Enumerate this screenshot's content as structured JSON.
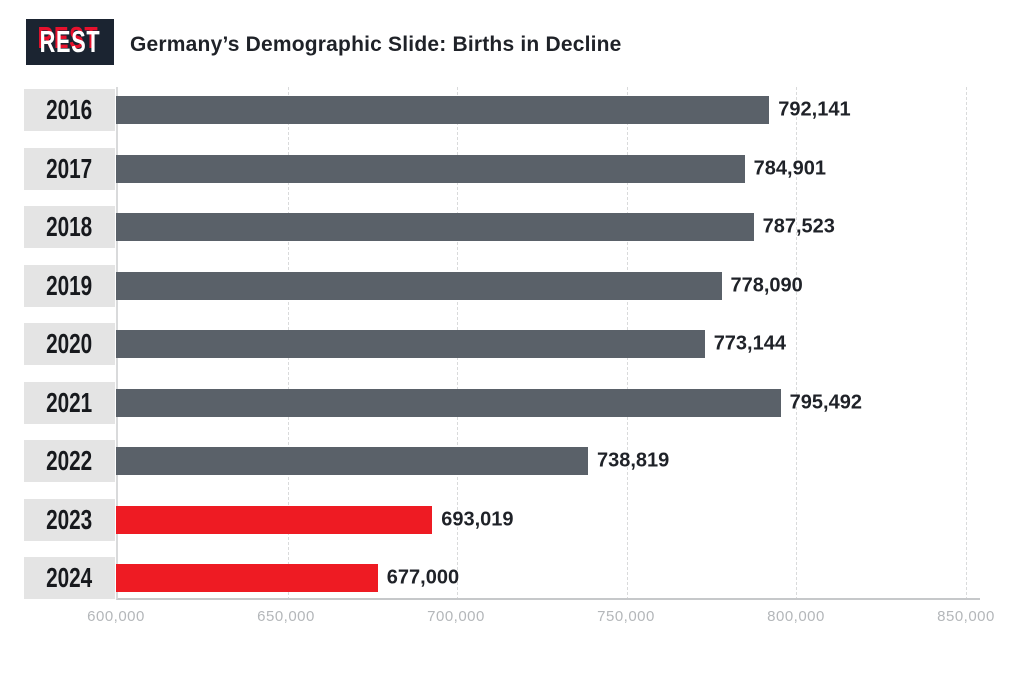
{
  "header": {
    "logo_text": "REST",
    "title": "Germany’s Demographic Slide: Births in Decline"
  },
  "chart_data": {
    "type": "bar",
    "orientation": "horizontal",
    "title": "Germany’s Demographic Slide: Births in Decline",
    "categories": [
      "2016",
      "2017",
      "2018",
      "2019",
      "2020",
      "2021",
      "2022",
      "2023",
      "2024"
    ],
    "values": [
      792141,
      784901,
      787523,
      778090,
      773144,
      795492,
      738819,
      693019,
      677000
    ],
    "value_labels": [
      "792,141",
      "784,901",
      "787,523",
      "778,090",
      "773,144",
      "795,492",
      "738,819",
      "693,019",
      "677,000"
    ],
    "highlight_categories": [
      "2023",
      "2024"
    ],
    "xlim": [
      600000,
      850000
    ],
    "x_ticks": [
      "600,000",
      "650,000",
      "700,000",
      "750,000",
      "800,000",
      "850,000"
    ],
    "xlabel": "",
    "ylabel": "",
    "legend": "none",
    "grid": "vertical-dotted",
    "colors": {
      "bar": "#5a6169",
      "highlight": "#ee1b23",
      "year_box_bg": "#e4e4e4",
      "year_text": "#17191d",
      "value_label": "#1f2228",
      "grid": "#d9dadb",
      "axis": "#c6c8ca",
      "tick_label": "#b4b7ba",
      "logo_bg": "#1b2431",
      "logo_accent": "#e8112d"
    }
  }
}
